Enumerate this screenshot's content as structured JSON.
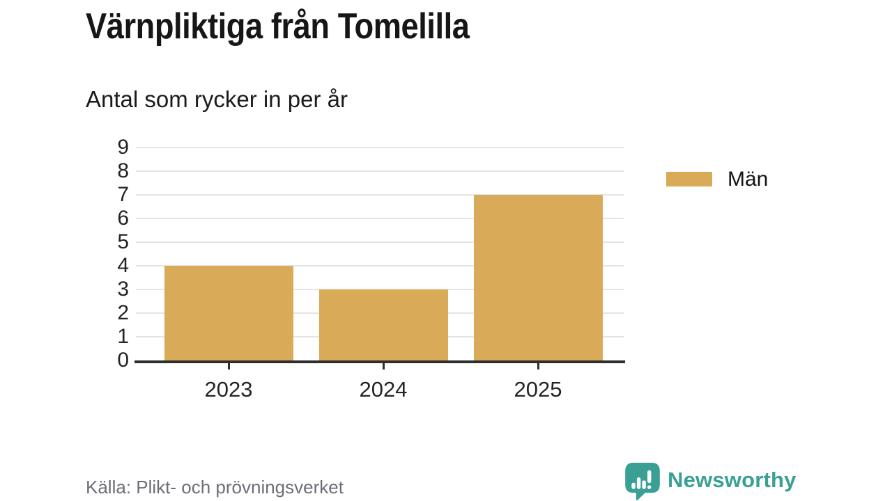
{
  "header": {
    "title": "Värnpliktiga från Tomelilla",
    "subtitle": "Antal som rycker in per år"
  },
  "chart_data": {
    "type": "bar",
    "title": "Värnpliktiga från Tomelilla",
    "subtitle": "Antal som rycker in per år",
    "categories": [
      "2023",
      "2024",
      "2025"
    ],
    "series": [
      {
        "name": "Män",
        "values": [
          4,
          3,
          7
        ],
        "color": "#d9ab58"
      }
    ],
    "xlabel": "",
    "ylabel": "",
    "ylim": [
      0,
      9
    ],
    "yticks": [
      0,
      1,
      2,
      3,
      4,
      5,
      6,
      7,
      8,
      9
    ],
    "grid": "horizontal",
    "legend_position": "right"
  },
  "legend": {
    "items": [
      {
        "label": "Män",
        "color": "#d9ab58"
      }
    ]
  },
  "footer": {
    "source": "Källa: Plikt- och prövningsverket",
    "brand": "Newsworthy"
  },
  "colors": {
    "bar": "#d9ab58",
    "brand_teal": "#3aa096",
    "grid": "#e4e4e4",
    "axis": "#2e2e2e",
    "title_text": "#161616",
    "axis_text": "#242424",
    "source_text": "#6d6d78"
  }
}
